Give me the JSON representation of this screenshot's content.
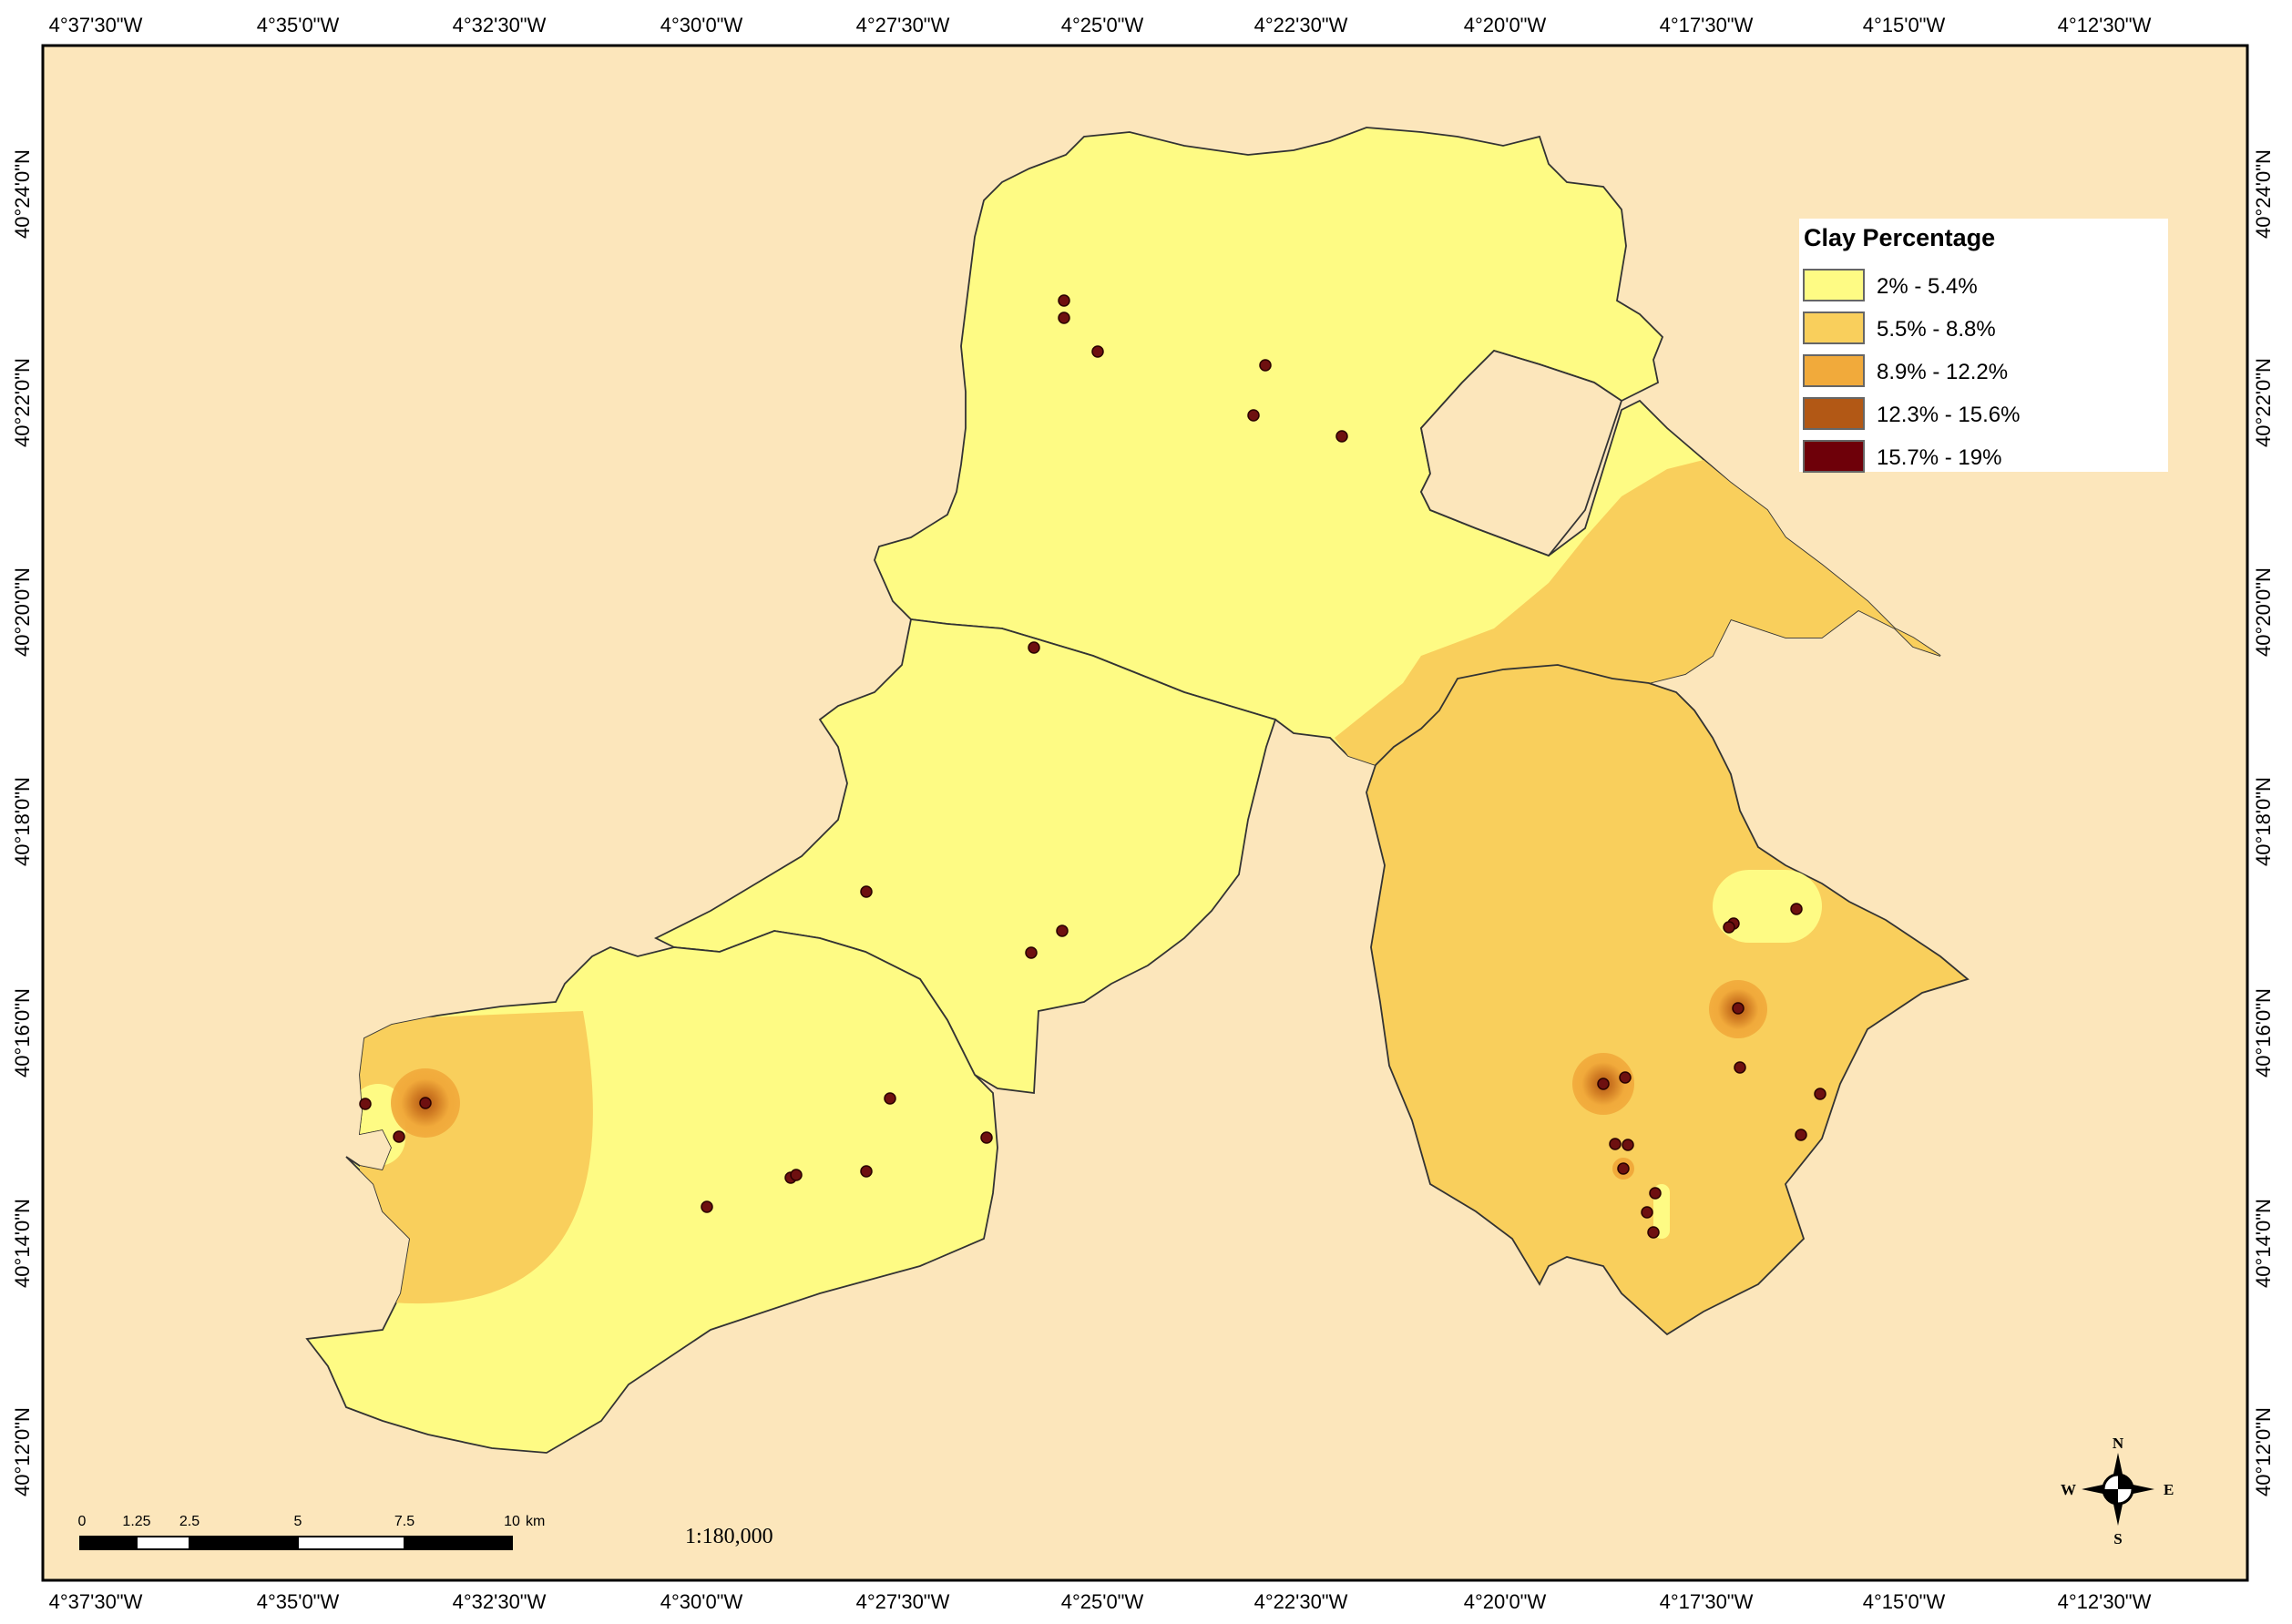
{
  "colors": {
    "background": "#FCE6BB",
    "class1": "#FEFB84",
    "class2": "#F9CF5C",
    "class3": "#F1AA3B",
    "class4": "#B25815",
    "class5": "#6E0009",
    "sample_point": "#6E1010",
    "border": "#333333"
  },
  "map": {
    "top_ticks": [
      "4°37'30\"W",
      "4°35'0\"W",
      "4°32'30\"W",
      "4°30'0\"W",
      "4°27'30\"W",
      "4°25'0\"W",
      "4°22'30\"W",
      "4°20'0\"W",
      "4°17'30\"W",
      "4°15'0\"W",
      "4°12'30\"W"
    ],
    "bottom_ticks": [
      "4°37'30\"W",
      "4°35'0\"W",
      "4°32'30\"W",
      "4°30'0\"W",
      "4°27'30\"W",
      "4°25'0\"W",
      "4°22'30\"W",
      "4°20'0\"W",
      "4°17'30\"W",
      "4°15'0\"W",
      "4°12'30\"W"
    ],
    "left_ticks": [
      "40°24'0\"N",
      "40°22'0\"N",
      "40°20'0\"N",
      "40°18'0\"N",
      "40°16'0\"N",
      "40°14'0\"N",
      "40°12'0\"N"
    ],
    "right_ticks": [
      "40°24'0\"N",
      "40°22'0\"N",
      "40°20'0\"N",
      "40°18'0\"N",
      "40°16'0\"N",
      "40°14'0\"N",
      "40°12'0\"N"
    ]
  },
  "legend": {
    "title": "Clay Percentage",
    "items": [
      {
        "label": "2% - 5.4%",
        "color": "#FEFB84"
      },
      {
        "label": "5.5% - 8.8%",
        "color": "#F9CF5C"
      },
      {
        "label": "8.9% - 12.2%",
        "color": "#F1AA3B"
      },
      {
        "label": "12.3% - 15.6%",
        "color": "#B25815"
      },
      {
        "label": "15.7% - 19%",
        "color": "#6E0009"
      }
    ]
  },
  "scale_bar": {
    "labels": [
      "0",
      "1.25",
      "2.5",
      "5",
      "7.5",
      "10"
    ],
    "unit": "km",
    "ratio": "1:180,000"
  },
  "compass": {
    "north": "N",
    "south": "S",
    "east": "E",
    "west": "W"
  }
}
